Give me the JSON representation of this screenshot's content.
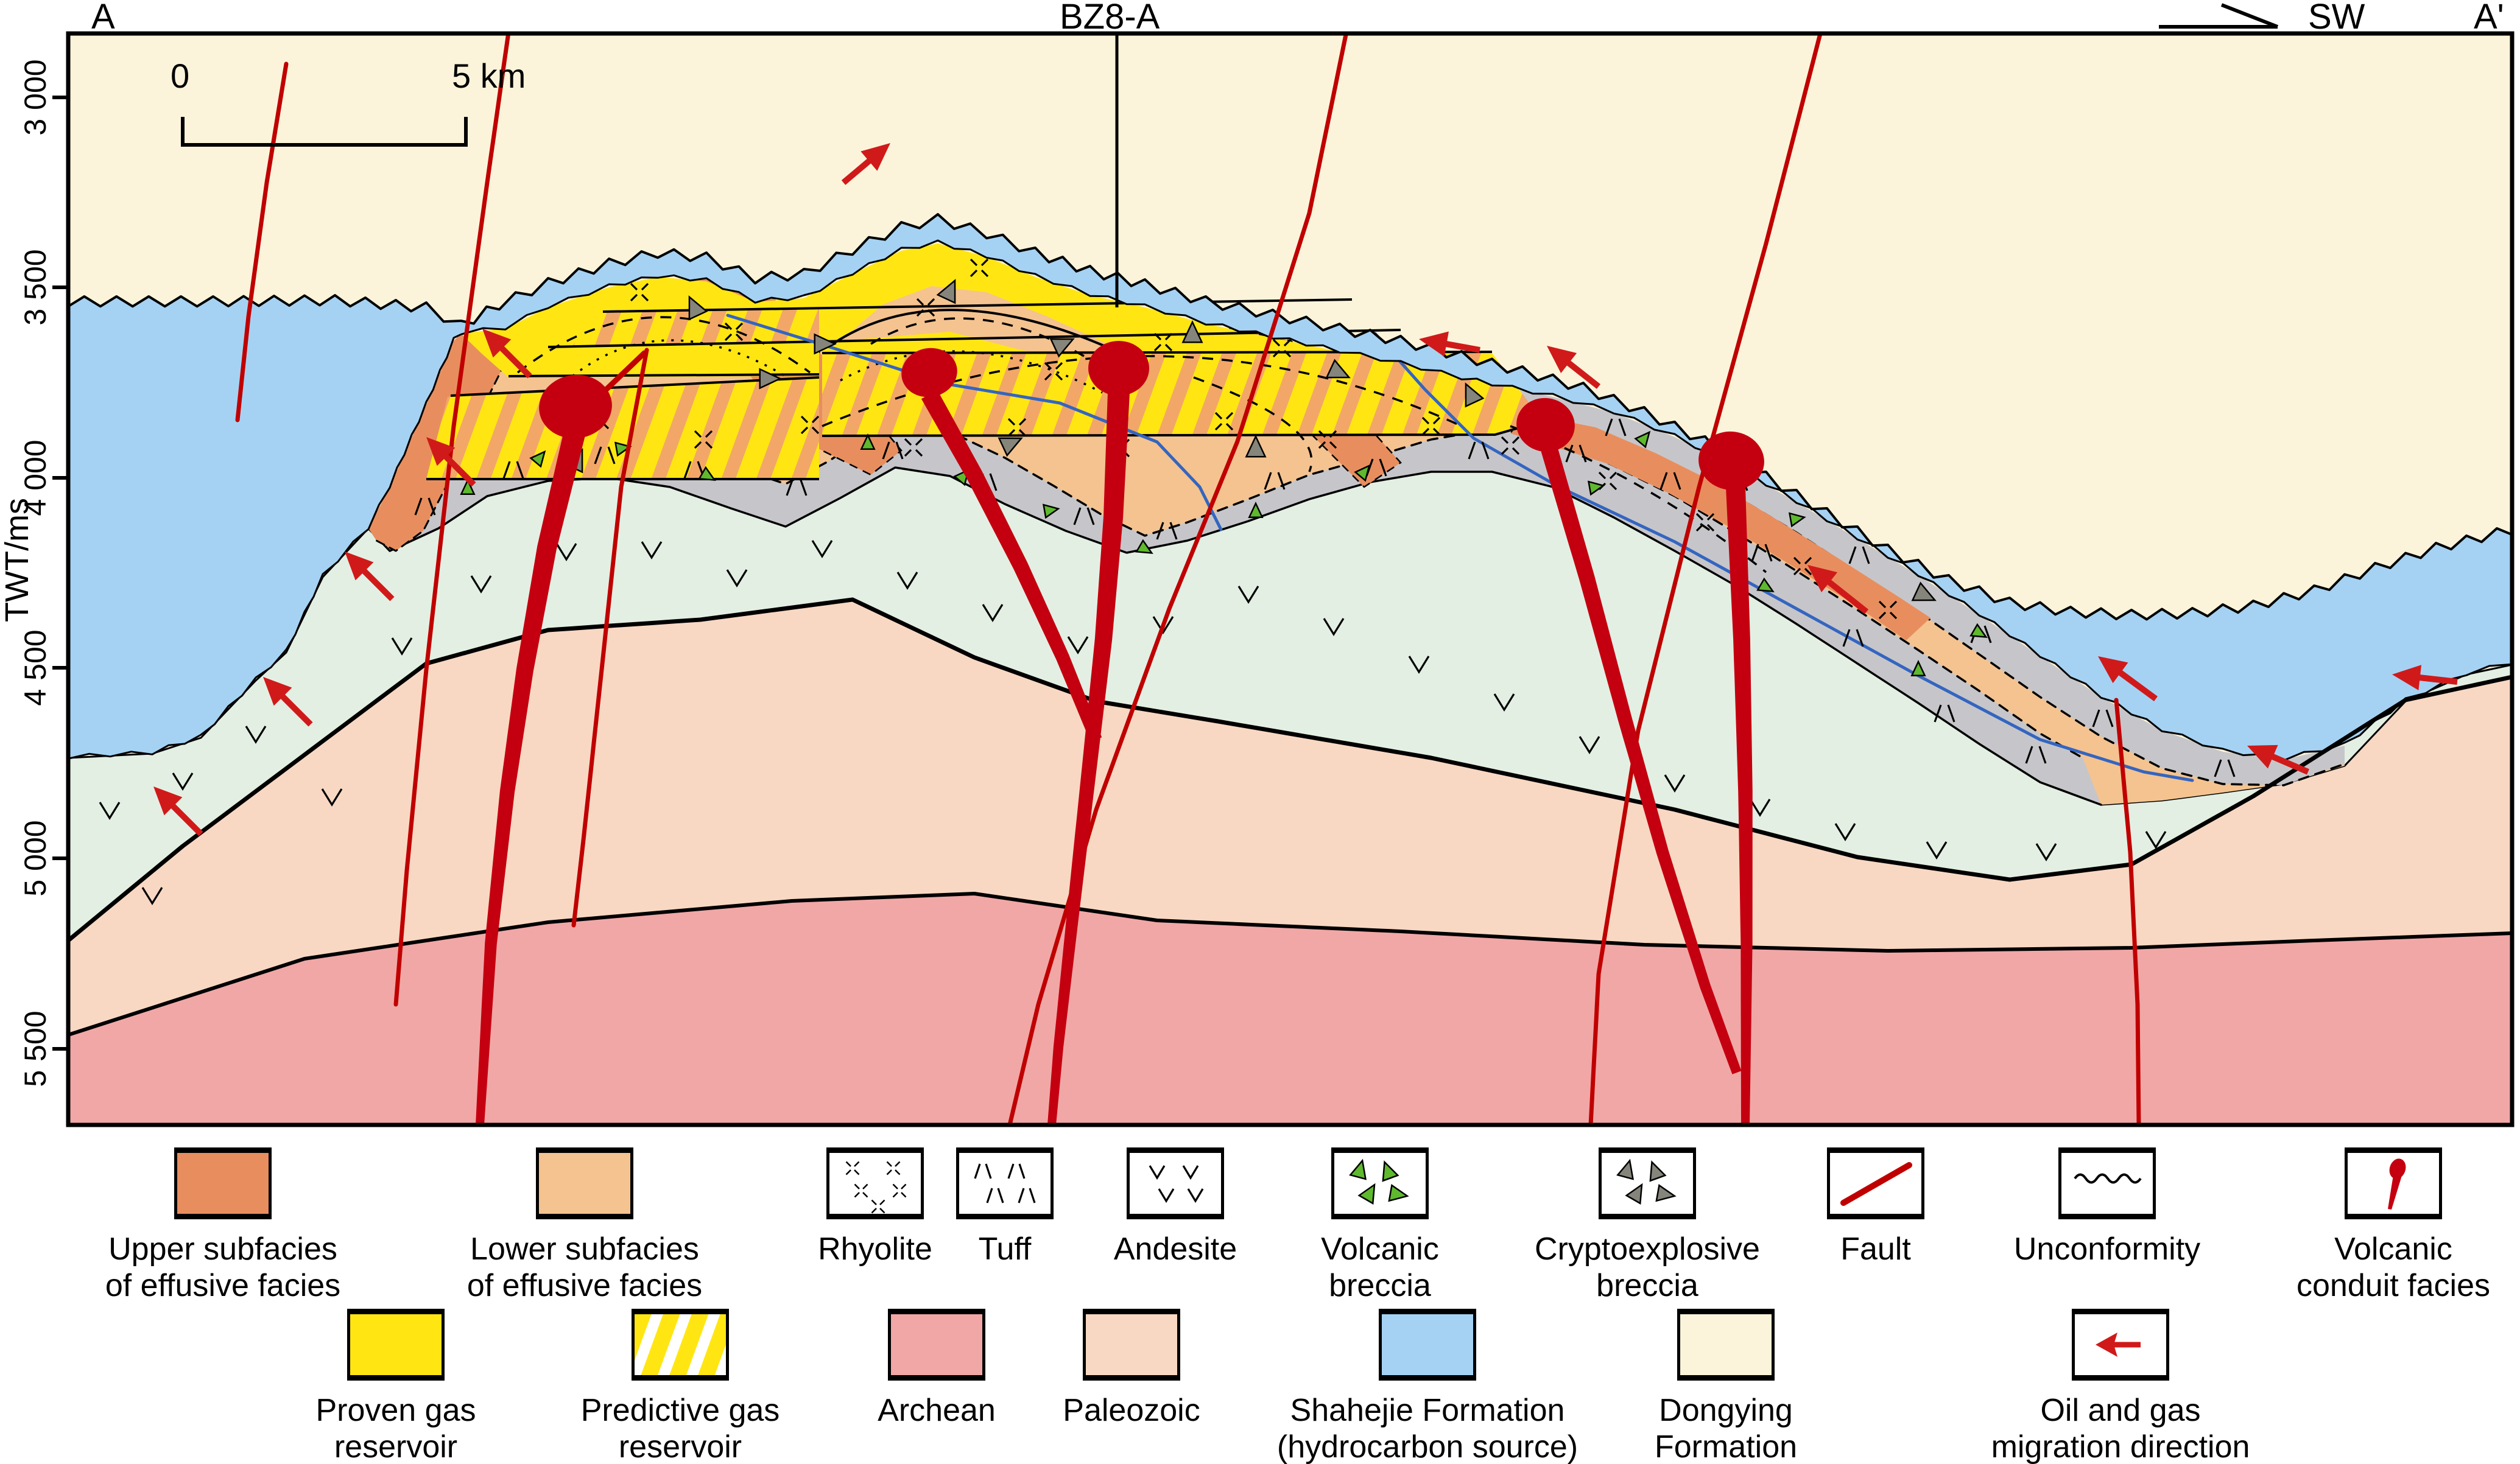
{
  "title_row": {
    "left": "A",
    "well": "BZ8-A",
    "dir": "SW",
    "right": "A'"
  },
  "axis": {
    "label": "TWT/ms",
    "ticks": [
      "3 000",
      "3 500",
      "4 000",
      "4 500",
      "5 000",
      "5 500"
    ]
  },
  "scale_bar": {
    "start": "0",
    "end": "5 km"
  },
  "colors": {
    "dongying": "#FBF4DA",
    "shahejie": "#A5D2F3",
    "andesite_body": "#E3EFE3",
    "paleozoic": "#F8D8C3",
    "archean": "#F1A7A6",
    "lower_subfacies": "#F4C390",
    "upper_subfacies": "#E88E5E",
    "proven_gas": "#FFE612",
    "tuff_band": "#C6C6CA",
    "fault_red": "#C00000",
    "conduit_red": "#C40010",
    "arrow_red": "#D01A1A",
    "gray_triangle": "#85857B",
    "green_triangle": "#5FB92E",
    "blue_line": "#3465C0",
    "stripe_orange": "#F2A768"
  },
  "legend_row1": [
    {
      "id": "upper-subfacies",
      "lines": [
        "Upper subfacies",
        "of effusive facies"
      ],
      "swatch": "solid",
      "color": "#E88E5E"
    },
    {
      "id": "lower-subfacies",
      "lines": [
        "Lower subfacies",
        "of effusive facies"
      ],
      "swatch": "solid",
      "color": "#F4C390"
    },
    {
      "id": "rhyolite",
      "lines": [
        "Rhyolite"
      ],
      "swatch": "rhyolite"
    },
    {
      "id": "tuff",
      "lines": [
        "Tuff"
      ],
      "swatch": "tuff"
    },
    {
      "id": "andesite",
      "lines": [
        "Andesite"
      ],
      "swatch": "andesite"
    },
    {
      "id": "volcanic-breccia",
      "lines": [
        "Volcanic",
        "breccia"
      ],
      "swatch": "volcanic-breccia"
    },
    {
      "id": "cryptoexplosive-breccia",
      "lines": [
        "Cryptoexplosive",
        "breccia"
      ],
      "swatch": "cryptoexplosive-breccia"
    },
    {
      "id": "fault",
      "lines": [
        "Fault"
      ],
      "swatch": "fault"
    },
    {
      "id": "unconformity",
      "lines": [
        "Unconformity"
      ],
      "swatch": "unconformity"
    },
    {
      "id": "volcanic-conduit-facies",
      "lines": [
        "Volcanic",
        "conduit facies"
      ],
      "swatch": "conduit"
    }
  ],
  "legend_row2": [
    {
      "id": "proven-gas-reservoir",
      "lines": [
        "Proven gas",
        "reservoir"
      ],
      "swatch": "solid",
      "color": "#FFE612"
    },
    {
      "id": "predictive-gas-reservoir",
      "lines": [
        "Predictive gas",
        "reservoir"
      ],
      "swatch": "stripes"
    },
    {
      "id": "archean",
      "lines": [
        "Archean"
      ],
      "swatch": "solid",
      "color": "#F1A7A6"
    },
    {
      "id": "paleozoic",
      "lines": [
        "Paleozoic"
      ],
      "swatch": "solid",
      "color": "#F8D8C3"
    },
    {
      "id": "shahejie-formation",
      "lines": [
        "Shahejie Formation",
        "(hydrocarbon source)"
      ],
      "swatch": "solid",
      "color": "#A5D2F3"
    },
    {
      "id": "dongying-formation",
      "lines": [
        "Dongying",
        "Formation"
      ],
      "swatch": "solid",
      "color": "#FBF4DA"
    },
    {
      "id": "oil-gas-migration",
      "lines": [
        "Oil and gas",
        "migration direction"
      ],
      "swatch": "migration-arrow"
    }
  ]
}
